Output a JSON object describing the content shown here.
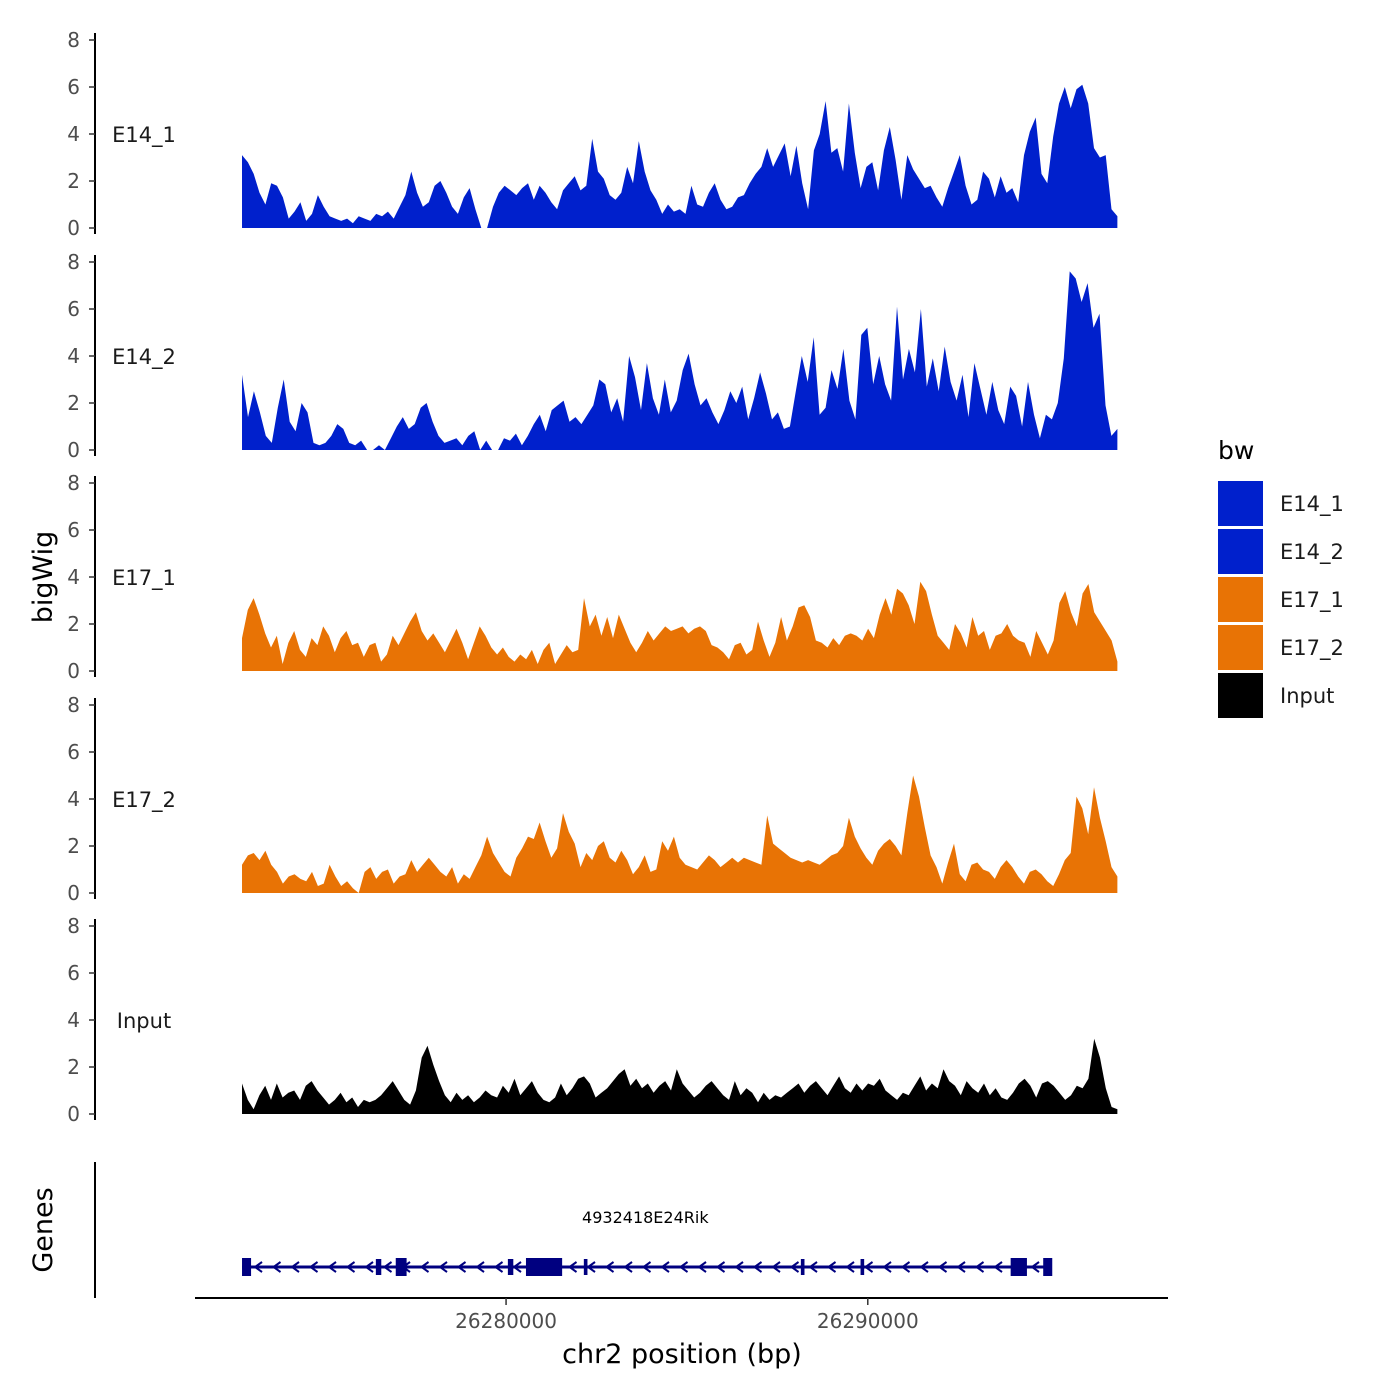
{
  "chart_data": {
    "type": "area",
    "ylabel": "bigWig",
    "xlabel": "chr2 position (bp)",
    "genes_label": "Genes",
    "xlim": [
      26271400,
      26298300
    ],
    "ylim": [
      0,
      8
    ],
    "y_ticks": [
      "0",
      "2",
      "4",
      "6",
      "8"
    ],
    "x_ticks": [
      {
        "value": 26280000,
        "label": "26280000"
      },
      {
        "value": 26290000,
        "label": "26290000"
      }
    ],
    "x_data_start": 26272700,
    "x_data_end": 26296900,
    "legend": {
      "title": "bw",
      "entries": [
        {
          "name": "E14_1",
          "color": "#0020CC"
        },
        {
          "name": "E14_2",
          "color": "#0020CC"
        },
        {
          "name": "E17_1",
          "color": "#E87305"
        },
        {
          "name": "E17_2",
          "color": "#E87305"
        },
        {
          "name": "Input",
          "color": "#000000"
        }
      ]
    },
    "series": [
      {
        "name": "E14_1",
        "color": "#0020CC",
        "values": [
          3.1,
          2.8,
          2.3,
          1.5,
          1.0,
          1.9,
          1.8,
          1.3,
          0.4,
          0.7,
          1.1,
          0.3,
          0.6,
          1.4,
          0.9,
          0.5,
          0.4,
          0.3,
          0.4,
          0.2,
          0.5,
          0.4,
          0.3,
          0.6,
          0.5,
          0.7,
          0.4,
          0.9,
          1.4,
          2.4,
          1.5,
          0.9,
          1.1,
          1.8,
          2.0,
          1.5,
          0.9,
          0.6,
          1.3,
          1.7,
          0.8,
          0,
          0,
          0.9,
          1.5,
          1.8,
          1.6,
          1.4,
          1.7,
          1.9,
          1.2,
          1.8,
          1.5,
          1.1,
          0.8,
          1.6,
          1.9,
          2.2,
          1.6,
          1.8,
          3.8,
          2.4,
          2.1,
          1.4,
          1.2,
          1.5,
          2.6,
          1.9,
          3.7,
          2.4,
          1.6,
          1.2,
          0.6,
          1.0,
          0.7,
          0.8,
          0.6,
          1.8,
          1.0,
          0.9,
          1.5,
          1.9,
          1.2,
          0.8,
          0.9,
          1.3,
          1.4,
          1.9,
          2.3,
          2.6,
          3.4,
          2.6,
          3.1,
          3.6,
          2.2,
          3.5,
          1.9,
          0.8,
          3.3,
          4.0,
          5.4,
          3.2,
          3.4,
          2.4,
          5.3,
          3.2,
          1.7,
          2.6,
          2.8,
          1.6,
          3.3,
          4.3,
          2.9,
          1.2,
          3.1,
          2.5,
          2.1,
          1.7,
          1.8,
          1.3,
          0.9,
          1.7,
          2.4,
          3.1,
          1.8,
          1.0,
          1.2,
          2.4,
          2.1,
          1.3,
          2.2,
          1.5,
          1.7,
          1.1,
          3.1,
          4.1,
          4.7,
          2.3,
          1.9,
          3.9,
          5.3,
          6.0,
          5.1,
          5.9,
          6.1,
          5.3,
          3.4,
          3.0,
          3.1,
          0.8,
          0.5
        ]
      },
      {
        "name": "E14_2",
        "color": "#0020CC",
        "values": [
          3.2,
          1.4,
          2.5,
          1.6,
          0.6,
          0.3,
          1.8,
          3.0,
          1.2,
          0.8,
          2.0,
          1.6,
          0.3,
          0.2,
          0.3,
          0.6,
          1.1,
          0.9,
          0.3,
          0.2,
          0.4,
          0,
          0,
          0.2,
          0,
          0.5,
          1.0,
          1.4,
          0.9,
          1.1,
          1.8,
          2.0,
          1.2,
          0.6,
          0.3,
          0.4,
          0.5,
          0.2,
          0.6,
          0.8,
          0,
          0.4,
          0,
          0,
          0.5,
          0.4,
          0.7,
          0.2,
          0.6,
          1.1,
          1.5,
          0.8,
          1.7,
          1.9,
          2.1,
          1.2,
          1.4,
          1.1,
          1.5,
          1.9,
          3.0,
          2.8,
          1.6,
          2.2,
          1.2,
          4.0,
          3.1,
          1.7,
          3.7,
          2.2,
          1.5,
          3.0,
          1.6,
          2.1,
          3.4,
          4.1,
          2.8,
          1.9,
          2.2,
          1.6,
          1.1,
          1.7,
          2.5,
          2.0,
          2.7,
          1.3,
          2.2,
          3.3,
          2.4,
          1.3,
          1.6,
          0.9,
          1.0,
          2.5,
          4.0,
          2.9,
          4.8,
          1.5,
          1.8,
          3.4,
          2.6,
          4.3,
          2.1,
          1.3,
          4.9,
          5.2,
          2.8,
          4.0,
          2.8,
          2.1,
          6.1,
          3.0,
          4.3,
          3.3,
          6.0,
          2.7,
          3.9,
          2.5,
          4.4,
          2.9,
          2.1,
          3.2,
          1.4,
          3.7,
          2.6,
          1.5,
          2.9,
          1.7,
          1.1,
          2.7,
          2.3,
          1.0,
          2.9,
          1.5,
          0.5,
          1.5,
          1.3,
          2.0,
          3.9,
          7.6,
          7.3,
          6.3,
          7.1,
          5.2,
          5.8,
          1.9,
          0.6,
          0.9
        ]
      },
      {
        "name": "E17_1",
        "color": "#E87305",
        "values": [
          1.4,
          2.6,
          3.1,
          2.4,
          1.6,
          1.0,
          1.5,
          0.3,
          1.2,
          1.7,
          0.9,
          0.6,
          1.4,
          1.1,
          1.9,
          1.5,
          0.8,
          1.4,
          1.7,
          1.1,
          1.2,
          0.6,
          1.1,
          1.2,
          0.4,
          0.7,
          1.5,
          1.1,
          1.6,
          2.1,
          2.5,
          1.7,
          1.3,
          1.6,
          1.2,
          0.8,
          1.3,
          1.8,
          1.2,
          0.5,
          1.2,
          1.9,
          1.5,
          1.0,
          0.7,
          1.0,
          0.6,
          0.4,
          0.7,
          0.5,
          0.9,
          0.3,
          0.9,
          1.2,
          0.3,
          0.7,
          1.1,
          0.8,
          0.9,
          3.1,
          1.9,
          2.4,
          1.5,
          2.3,
          1.4,
          2.4,
          1.8,
          1.2,
          0.8,
          1.2,
          1.7,
          1.3,
          1.6,
          1.9,
          1.7,
          1.8,
          1.9,
          1.6,
          1.8,
          1.9,
          1.7,
          1.1,
          1.0,
          0.8,
          0.5,
          1.1,
          1.2,
          0.7,
          0.9,
          2.1,
          1.3,
          0.6,
          1.2,
          2.3,
          1.3,
          1.9,
          2.7,
          2.8,
          2.3,
          1.3,
          1.2,
          1.0,
          1.4,
          1.1,
          1.5,
          1.6,
          1.5,
          1.3,
          1.8,
          1.4,
          2.4,
          3.1,
          2.4,
          3.5,
          3.3,
          2.8,
          2.0,
          3.8,
          3.4,
          2.4,
          1.5,
          1.2,
          0.9,
          2.0,
          1.6,
          1.0,
          2.3,
          1.5,
          1.7,
          0.9,
          1.5,
          1.6,
          2.0,
          1.5,
          1.3,
          1.2,
          0.6,
          1.7,
          1.2,
          0.7,
          1.3,
          2.9,
          3.4,
          2.5,
          1.9,
          3.3,
          3.7,
          2.5,
          2.1,
          1.7,
          1.3,
          0.4
        ]
      },
      {
        "name": "E17_2",
        "color": "#E87305",
        "values": [
          1.2,
          1.6,
          1.7,
          1.4,
          1.8,
          1.2,
          0.9,
          0.4,
          0.7,
          0.8,
          0.6,
          0.5,
          0.9,
          0.3,
          0.4,
          1.2,
          0.7,
          0.3,
          0.5,
          0.2,
          0,
          0.9,
          1.1,
          0.6,
          0.9,
          1.0,
          0.4,
          0.7,
          0.8,
          1.4,
          0.9,
          1.2,
          1.5,
          1.2,
          0.9,
          0.7,
          1.1,
          0.4,
          0.8,
          0.6,
          1.1,
          1.6,
          2.4,
          1.7,
          1.3,
          0.9,
          0.7,
          1.5,
          1.9,
          2.4,
          2.3,
          3.0,
          2.2,
          1.5,
          1.9,
          3.4,
          2.6,
          2.1,
          1.1,
          1.7,
          1.4,
          2.0,
          2.2,
          1.5,
          1.3,
          1.8,
          1.4,
          0.8,
          1.1,
          1.6,
          0.9,
          1.0,
          2.2,
          1.8,
          2.4,
          1.5,
          1.2,
          1.1,
          1.0,
          1.3,
          1.6,
          1.4,
          1.1,
          1.3,
          1.5,
          1.3,
          1.5,
          1.4,
          1.3,
          1.2,
          3.3,
          2.1,
          1.9,
          1.7,
          1.5,
          1.4,
          1.3,
          1.4,
          1.3,
          1.2,
          1.4,
          1.6,
          1.7,
          2.0,
          3.2,
          2.4,
          1.9,
          1.5,
          1.2,
          1.8,
          2.1,
          2.3,
          2.0,
          1.6,
          3.4,
          5.0,
          4.1,
          2.8,
          1.6,
          1.1,
          0.4,
          1.3,
          2.1,
          0.8,
          0.5,
          1.2,
          1.3,
          1.0,
          0.9,
          0.6,
          1.1,
          1.4,
          1.1,
          0.7,
          0.4,
          0.9,
          1.0,
          0.8,
          0.5,
          0.3,
          0.8,
          1.4,
          1.7,
          4.1,
          3.6,
          2.5,
          4.5,
          3.2,
          2.2,
          1.1,
          0.7
        ]
      },
      {
        "name": "Input",
        "color": "#000000",
        "values": [
          1.3,
          0.6,
          0.2,
          0.8,
          1.2,
          0.6,
          1.3,
          0.7,
          0.9,
          1.0,
          0.6,
          1.2,
          1.4,
          1.0,
          0.7,
          0.4,
          0.6,
          0.9,
          0.5,
          0.7,
          0.3,
          0.6,
          0.5,
          0.6,
          0.8,
          1.1,
          1.4,
          1.0,
          0.6,
          0.4,
          1.0,
          2.4,
          2.9,
          2.1,
          1.4,
          0.8,
          0.5,
          0.9,
          0.6,
          0.8,
          0.5,
          0.7,
          1.0,
          0.8,
          0.7,
          1.2,
          0.9,
          1.5,
          0.8,
          1.1,
          1.4,
          0.9,
          0.6,
          0.5,
          0.7,
          1.3,
          0.8,
          1.1,
          1.5,
          1.6,
          1.3,
          0.7,
          0.9,
          1.1,
          1.4,
          1.7,
          1.9,
          1.2,
          1.5,
          1.1,
          1.3,
          0.9,
          1.2,
          1.4,
          1.0,
          1.9,
          1.3,
          1.0,
          0.7,
          0.9,
          1.2,
          1.4,
          1.1,
          0.8,
          0.6,
          1.4,
          0.8,
          1.1,
          0.9,
          0.5,
          0.9,
          0.6,
          0.8,
          0.7,
          0.9,
          1.1,
          1.3,
          0.9,
          1.2,
          1.4,
          1.1,
          0.8,
          1.2,
          1.6,
          1.1,
          0.9,
          1.3,
          1.0,
          1.3,
          1.2,
          1.5,
          1.0,
          0.8,
          0.6,
          0.9,
          0.8,
          1.2,
          1.6,
          1.0,
          1.3,
          1.1,
          1.9,
          1.4,
          1.2,
          0.8,
          1.4,
          1.1,
          0.9,
          1.3,
          0.8,
          1.1,
          0.7,
          0.6,
          0.9,
          1.3,
          1.5,
          1.2,
          0.7,
          1.3,
          1.4,
          1.2,
          0.9,
          0.6,
          0.8,
          1.2,
          1.1,
          1.5,
          3.2,
          2.4,
          1.1,
          0.3,
          0.2
        ]
      }
    ],
    "gene": {
      "name": "4932418E24Rik",
      "start": 26272700,
      "end": 26295000,
      "strand": "-",
      "color": "#000080",
      "exons": [
        {
          "start": 26272700,
          "end": 26272950
        },
        {
          "start": 26276400,
          "end": 26276550
        },
        {
          "start": 26276950,
          "end": 26277250
        },
        {
          "start": 26280050,
          "end": 26280200
        },
        {
          "start": 26280550,
          "end": 26281550
        },
        {
          "start": 26282150,
          "end": 26282250
        },
        {
          "start": 26288150,
          "end": 26288250
        },
        {
          "start": 26289800,
          "end": 26289900
        },
        {
          "start": 26293950,
          "end": 26294400
        },
        {
          "start": 26294850,
          "end": 26295100
        }
      ]
    }
  }
}
